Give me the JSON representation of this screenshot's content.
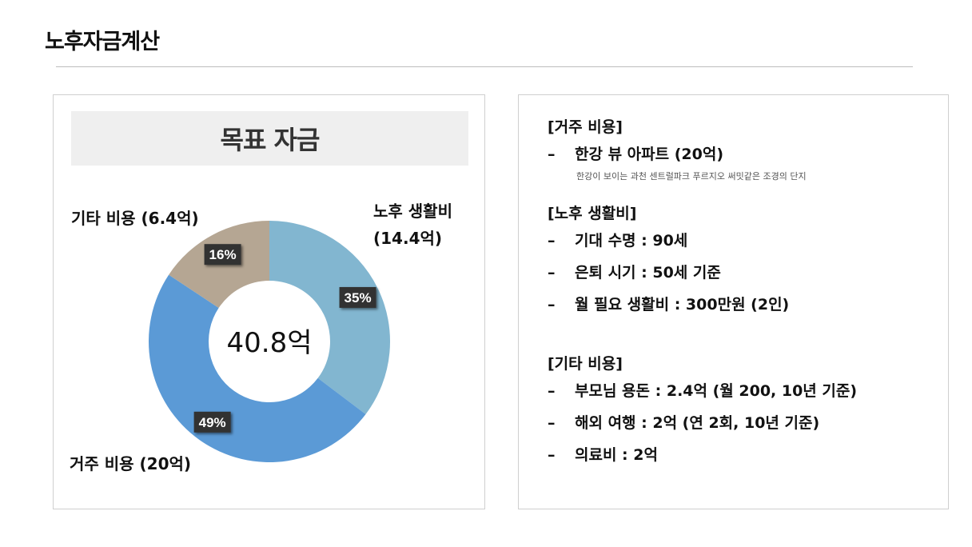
{
  "page": {
    "title": "노후자금계산"
  },
  "chart_panel": {
    "header": "목표 자금",
    "center_total": "40.8억"
  },
  "chart_data": {
    "type": "pie",
    "title": "목표 자금",
    "total_label": "40.8억",
    "unit": "억",
    "slices": [
      {
        "name": "노후 생활비",
        "value": 14.4,
        "percent": 35,
        "percent_label": "35%",
        "label_lines": [
          "노후 생활비",
          "(14.4억)"
        ],
        "color": "#82b6d0"
      },
      {
        "name": "거주 비용",
        "value": 20,
        "percent": 49,
        "percent_label": "49%",
        "label_lines": [
          "거주 비용 (20억)"
        ],
        "color": "#5b9ad6"
      },
      {
        "name": "기타 비용",
        "value": 6.4,
        "percent": 16,
        "percent_label": "16%",
        "label_lines": [
          "기타 비용 (6.4억)"
        ],
        "color": "#b5a693"
      }
    ]
  },
  "details": {
    "housing": {
      "title": "[거주 비용]",
      "dash": "–",
      "item": "한강 뷰 아파트 (20억)",
      "note": "한강이 보이는 과천 센트럴파크 푸르지오 써밋같은 조경의 단지"
    },
    "living": {
      "title": "[노후 생활비]",
      "dash": "–",
      "items": [
        "기대 수명 : 90세",
        "은퇴 시기 : 50세 기준",
        "월 필요 생활비 : 300만원 (2인)"
      ]
    },
    "other": {
      "title": "[기타 비용]",
      "dash": "–",
      "items": [
        "부모님 용돈 : 2.4억 (월 200, 10년 기준)",
        "해외 여행 : 2억 (연 2회, 10년 기준)",
        "의료비 : 2억"
      ]
    }
  }
}
